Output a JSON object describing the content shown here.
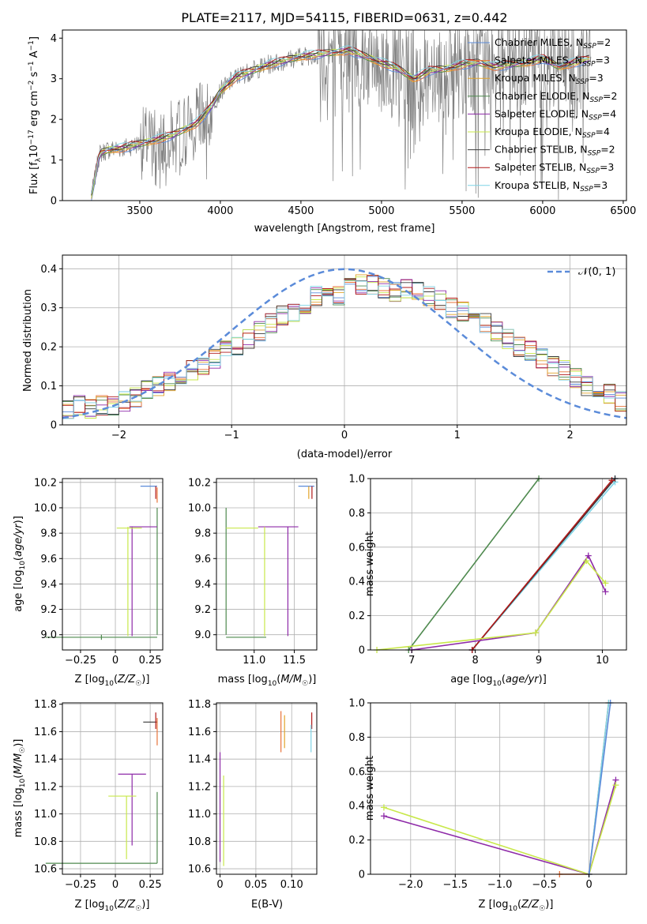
{
  "figure_title": "PLATE=2117, MJD=54115, FIBERID=0631, z=0.442",
  "colors": {
    "models": [
      "#5b8bd9",
      "#e8733a",
      "#e2a42a",
      "#4f8a4f",
      "#8e2aa8",
      "#c8e84a",
      "#3a3a3a",
      "#b01818",
      "#7fd4e6"
    ],
    "observed": "#808080",
    "normal_curve": "#5b8bd9",
    "grid": "#b0b0b0"
  },
  "legend_models": [
    {
      "lib": "Chabrier MILES, N",
      "sub": "SSP",
      "num": "=2"
    },
    {
      "lib": "Salpeter MILES, N",
      "sub": "SSP",
      "num": "=3"
    },
    {
      "lib": "Kroupa MILES, N",
      "sub": "SSP",
      "num": "=3"
    },
    {
      "lib": "Chabrier ELODIE, N",
      "sub": "SSP",
      "num": "=2"
    },
    {
      "lib": "Salpeter ELODIE, N",
      "sub": "SSP",
      "num": "=4"
    },
    {
      "lib": "Kroupa ELODIE, N",
      "sub": "SSP",
      "num": "=4"
    },
    {
      "lib": "Chabrier STELIB, N",
      "sub": "SSP",
      "num": "=2"
    },
    {
      "lib": "Salpeter STELIB, N",
      "sub": "SSP",
      "num": "=3"
    },
    {
      "lib": "Kroupa STELIB, N",
      "sub": "SSP",
      "num": "=3"
    }
  ],
  "normal_legend": "𝒩(0, 1)",
  "chart_data": [
    {
      "id": "spectrum",
      "type": "line",
      "xlabel": "wavelength [Angstrom, rest frame]",
      "ylabel": "Flux [f_λ 10^-17 erg cm^-2 s^-1 A^-1]",
      "xlim": [
        3020,
        6520
      ],
      "ylim": [
        0,
        4.2
      ],
      "xticks": [
        3500,
        4000,
        4500,
        5000,
        5500,
        6000,
        6500
      ],
      "yticks": [
        0,
        1,
        2,
        3,
        4
      ],
      "continuum": {
        "x": [
          3200,
          3250,
          3300,
          3400,
          3500,
          3600,
          3700,
          3800,
          3850,
          3900,
          3950,
          4000,
          4100,
          4200,
          4300,
          4400,
          4500,
          4600,
          4700,
          4800,
          4900,
          5000,
          5100,
          5200,
          5300,
          5400,
          5500,
          5600,
          5700,
          5800,
          5900,
          6000,
          6100,
          6200,
          6300
        ],
        "y": [
          0.1,
          1.15,
          1.25,
          1.3,
          1.4,
          1.5,
          1.6,
          1.8,
          1.9,
          2.1,
          2.35,
          2.7,
          3.05,
          3.2,
          3.35,
          3.45,
          3.55,
          3.6,
          3.65,
          3.7,
          3.55,
          3.4,
          3.25,
          3.0,
          3.2,
          3.25,
          3.35,
          3.4,
          3.3,
          3.35,
          3.4,
          3.5,
          3.3,
          3.4,
          3.5
        ]
      }
    },
    {
      "id": "residuals",
      "type": "histogram",
      "xlabel": "(data-model)/error",
      "ylabel": "Normed distribution",
      "xlim": [
        -2.5,
        2.5
      ],
      "ylim": [
        0,
        0.435
      ],
      "xticks": [
        -2,
        -1,
        0,
        1,
        2
      ],
      "yticks": [
        0.0,
        0.1,
        0.2,
        0.3,
        0.4
      ],
      "bin_edges": [
        -2.5,
        -2.4,
        -2.3,
        -2.2,
        -2.1,
        -2.0,
        -1.9,
        -1.8,
        -1.7,
        -1.6,
        -1.5,
        -1.4,
        -1.3,
        -1.2,
        -1.1,
        -1.0,
        -0.9,
        -0.8,
        -0.7,
        -0.6,
        -0.5,
        -0.4,
        -0.3,
        -0.2,
        -0.1,
        0.0,
        0.1,
        0.2,
        0.3,
        0.4,
        0.5,
        0.6,
        0.7,
        0.8,
        0.9,
        1.0,
        1.1,
        1.2,
        1.3,
        1.4,
        1.5,
        1.6,
        1.7,
        1.8,
        1.9,
        2.0,
        2.1,
        2.2,
        2.3,
        2.4,
        2.5
      ],
      "base_values": [
        0.04,
        0.05,
        0.04,
        0.05,
        0.05,
        0.06,
        0.07,
        0.09,
        0.1,
        0.11,
        0.13,
        0.14,
        0.15,
        0.17,
        0.19,
        0.2,
        0.22,
        0.24,
        0.26,
        0.28,
        0.29,
        0.31,
        0.33,
        0.34,
        0.33,
        0.35,
        0.36,
        0.36,
        0.35,
        0.34,
        0.35,
        0.34,
        0.33,
        0.32,
        0.3,
        0.29,
        0.27,
        0.26,
        0.24,
        0.22,
        0.2,
        0.19,
        0.17,
        0.15,
        0.14,
        0.12,
        0.1,
        0.09,
        0.08,
        0.06
      ],
      "normal": {
        "mean": 0,
        "sigma": 1,
        "style": "dashed"
      }
    },
    {
      "id": "age-vs-Z",
      "type": "errorbar",
      "xlabel": "Z [log10(Z/Z☉)]",
      "ylabel": "age [log10(age/yr)]",
      "xlim": [
        -0.38,
        0.34
      ],
      "ylim": [
        8.88,
        10.23
      ],
      "xticks": [
        -0.25,
        0.0,
        0.25
      ],
      "yticks": [
        9.0,
        9.2,
        9.4,
        9.6,
        9.8,
        10.0,
        10.2
      ],
      "points": [
        {
          "model": 3,
          "x": -0.1,
          "xerr": 0.4,
          "y": 8.98,
          "yerr": 0.02
        },
        {
          "model": 3,
          "x": 0.3,
          "xerr": 0.0,
          "y": 9.5,
          "yerr": 0.5
        },
        {
          "model": 4,
          "x": 0.2,
          "xerr": 0.1,
          "y": 9.85,
          "yerr": 0.0
        },
        {
          "model": 4,
          "x": 0.12,
          "xerr": 0.0,
          "y": 9.42,
          "yerr": 0.43
        },
        {
          "model": 5,
          "x": 0.1,
          "xerr": 0.09,
          "y": 9.84,
          "yerr": 0.0
        },
        {
          "model": 5,
          "x": 0.09,
          "xerr": 0.0,
          "y": 9.42,
          "yerr": 0.43
        },
        {
          "model": 0,
          "x": 0.24,
          "xerr": 0.06,
          "y": 10.17,
          "yerr": 0.0
        },
        {
          "model": 1,
          "x": 0.3,
          "xerr": 0.0,
          "y": 10.1,
          "yerr": 0.06
        },
        {
          "model": 7,
          "x": 0.29,
          "xerr": 0.0,
          "y": 10.12,
          "yerr": 0.05
        }
      ]
    },
    {
      "id": "age-vs-mass",
      "type": "errorbar",
      "xlabel": "mass [log10(M/M☉)]",
      "ylabel": "",
      "xlim": [
        10.53,
        11.78
      ],
      "ylim": [
        8.88,
        10.23
      ],
      "xticks": [
        11.0,
        11.5
      ],
      "yticks": [
        9.0,
        9.2,
        9.4,
        9.6,
        9.8,
        10.0,
        10.2
      ],
      "points": [
        {
          "model": 3,
          "x": 10.9,
          "xerr": 0.25,
          "y": 8.98,
          "yerr": 0.0
        },
        {
          "model": 3,
          "x": 10.65,
          "xerr": 0.0,
          "y": 9.5,
          "yerr": 0.5
        },
        {
          "model": 4,
          "x": 11.3,
          "xerr": 0.25,
          "y": 9.85,
          "yerr": 0.0
        },
        {
          "model": 4,
          "x": 11.42,
          "xerr": 0.0,
          "y": 9.42,
          "yerr": 0.43
        },
        {
          "model": 5,
          "x": 10.85,
          "xerr": 0.2,
          "y": 9.84,
          "yerr": 0.0
        },
        {
          "model": 5,
          "x": 11.13,
          "xerr": 0.0,
          "y": 9.42,
          "yerr": 0.43
        },
        {
          "model": 0,
          "x": 11.65,
          "xerr": 0.1,
          "y": 10.17,
          "yerr": 0.0
        },
        {
          "model": 7,
          "x": 11.72,
          "xerr": 0.0,
          "y": 10.12,
          "yerr": 0.05
        },
        {
          "model": 2,
          "x": 11.68,
          "xerr": 0.0,
          "y": 10.12,
          "yerr": 0.05
        }
      ]
    },
    {
      "id": "weight-vs-age",
      "type": "line",
      "xlabel": "age [log10(age/yr)]",
      "ylabel": "mass weight",
      "xlim": [
        6.35,
        10.38
      ],
      "ylim": [
        0,
        1.0
      ],
      "xticks": [
        7,
        8,
        9,
        10
      ],
      "yticks": [
        0.0,
        0.2,
        0.4,
        0.6,
        0.8,
        1.0
      ],
      "series": [
        {
          "model": 3,
          "x": [
            6.95,
            9.0
          ],
          "y": [
            0.0,
            1.0
          ]
        },
        {
          "model": 0,
          "x": [
            7.95,
            10.2
          ],
          "y": [
            0.0,
            1.0
          ]
        },
        {
          "model": 8,
          "x": [
            7.95,
            10.2
          ],
          "y": [
            0.0,
            0.98
          ]
        },
        {
          "model": 6,
          "x": [
            7.95,
            10.2
          ],
          "y": [
            0.0,
            1.0
          ]
        },
        {
          "model": 7,
          "x": [
            7.95,
            10.15
          ],
          "y": [
            0.0,
            0.99
          ]
        },
        {
          "model": 4,
          "x": [
            7.0,
            8.95,
            9.78,
            10.05
          ],
          "y": [
            0.0,
            0.1,
            0.55,
            0.34
          ]
        },
        {
          "model": 5,
          "x": [
            6.45,
            8.95,
            9.75,
            10.05
          ],
          "y": [
            0.0,
            0.1,
            0.52,
            0.39
          ]
        }
      ]
    },
    {
      "id": "mass-vs-Z",
      "type": "errorbar",
      "xlabel": "Z [log10(Z/Z☉)]",
      "ylabel": "mass [log10(M/M☉)]",
      "xlim": [
        -0.38,
        0.34
      ],
      "ylim": [
        10.56,
        11.81
      ],
      "xticks": [
        -0.25,
        0.0,
        0.25
      ],
      "yticks": [
        10.6,
        10.8,
        11.0,
        11.2,
        11.4,
        11.6,
        11.8
      ],
      "points": [
        {
          "model": 3,
          "x": -0.1,
          "xerr": 0.4,
          "y": 10.64,
          "yerr": 0.0
        },
        {
          "model": 3,
          "x": 0.3,
          "xerr": 0.0,
          "y": 10.9,
          "yerr": 0.26
        },
        {
          "model": 4,
          "x": 0.12,
          "xerr": 0.1,
          "y": 11.29,
          "yerr": 0.0
        },
        {
          "model": 4,
          "x": 0.12,
          "xerr": 0.0,
          "y": 11.03,
          "yerr": 0.26
        },
        {
          "model": 5,
          "x": 0.05,
          "xerr": 0.1,
          "y": 11.13,
          "yerr": 0.0
        },
        {
          "model": 5,
          "x": 0.08,
          "xerr": 0.0,
          "y": 10.9,
          "yerr": 0.23
        },
        {
          "model": 6,
          "x": 0.25,
          "xerr": 0.05,
          "y": 11.67,
          "yerr": 0.0
        },
        {
          "model": 1,
          "x": 0.3,
          "xerr": 0.0,
          "y": 11.6,
          "yerr": 0.1
        },
        {
          "model": 7,
          "x": 0.29,
          "xerr": 0.0,
          "y": 11.68,
          "yerr": 0.06
        }
      ]
    },
    {
      "id": "mass-vs-ebv",
      "type": "errorbar",
      "xlabel": "E(B-V)",
      "ylabel": "",
      "xlim": [
        -0.005,
        0.135
      ],
      "ylim": [
        10.56,
        11.81
      ],
      "xticks": [
        0.0,
        0.05,
        0.1
      ],
      "yticks": [
        10.6,
        10.8,
        11.0,
        11.2,
        11.4,
        11.6,
        11.8
      ],
      "points": [
        {
          "model": 4,
          "x": 0.0,
          "xerr": 0.0,
          "y": 11.05,
          "yerr": 0.4
        },
        {
          "model": 5,
          "x": 0.005,
          "xerr": 0.0,
          "y": 10.95,
          "yerr": 0.33
        },
        {
          "model": 1,
          "x": 0.085,
          "xerr": 0.0,
          "y": 11.6,
          "yerr": 0.15
        },
        {
          "model": 2,
          "x": 0.09,
          "xerr": 0.0,
          "y": 11.6,
          "yerr": 0.12
        },
        {
          "model": 7,
          "x": 0.128,
          "xerr": 0.0,
          "y": 11.68,
          "yerr": 0.06
        },
        {
          "model": 8,
          "x": 0.127,
          "xerr": 0.0,
          "y": 11.55,
          "yerr": 0.1
        }
      ]
    },
    {
      "id": "weight-vs-Z",
      "type": "line",
      "xlabel": "Z [log10(Z/Z☉)]",
      "ylabel": "mass weight",
      "xlim": [
        -2.45,
        0.42
      ],
      "ylim": [
        0,
        1.0
      ],
      "xticks": [
        -2.0,
        -1.5,
        -1.0,
        -0.5,
        0.0
      ],
      "yticks": [
        0.0,
        0.2,
        0.4,
        0.6,
        0.8,
        1.0
      ],
      "series": [
        {
          "model": 4,
          "x": [
            -2.3,
            0.0,
            0.3
          ],
          "y": [
            0.34,
            0.0,
            0.55
          ]
        },
        {
          "model": 5,
          "x": [
            -2.3,
            0.0,
            0.3
          ],
          "y": [
            0.39,
            0.0,
            0.52
          ]
        },
        {
          "model": 1,
          "x": [
            -0.33,
            0.0,
            0.22
          ],
          "y": [
            0.0,
            0.0,
            1.0
          ]
        },
        {
          "model": 8,
          "x": [
            0.0,
            0.22
          ],
          "y": [
            0.0,
            1.0
          ]
        },
        {
          "model": 0,
          "x": [
            0.0,
            0.24
          ],
          "y": [
            0.0,
            1.0
          ]
        }
      ]
    }
  ]
}
